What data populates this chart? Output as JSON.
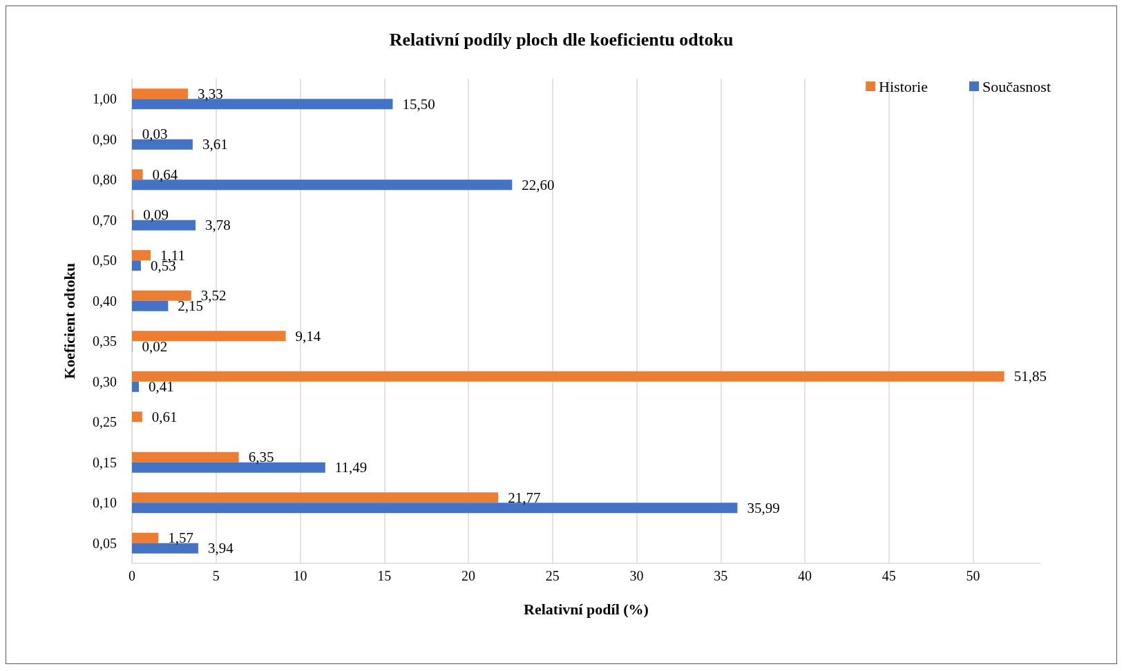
{
  "chart_data": {
    "type": "bar",
    "orientation": "horizontal",
    "title": "Relativní podíly ploch dle koeficientu odtoku",
    "xlabel": "Relativní podíl (%)",
    "ylabel": "Koeficient odtoku",
    "categories": [
      "1,00",
      "0,90",
      "0,80",
      "0,70",
      "0,50",
      "0,40",
      "0,35",
      "0,30",
      "0,25",
      "0,15",
      "0,10",
      "0,05"
    ],
    "series": [
      {
        "name": "Historie",
        "color": "#ed7d31",
        "values": [
          3.33,
          0.03,
          0.64,
          0.09,
          1.11,
          3.52,
          9.14,
          51.85,
          0.61,
          6.35,
          21.77,
          1.57
        ],
        "value_labels": [
          "3,33",
          "0,03",
          "0,64",
          "0,09",
          "1,11",
          "3,52",
          "9,14",
          "51,85",
          "0,61",
          "6,35",
          "21,77",
          "1,57"
        ]
      },
      {
        "name": "Současnost",
        "color": "#4472c4",
        "values": [
          15.5,
          3.61,
          22.6,
          3.78,
          0.53,
          2.15,
          0.02,
          0.41,
          null,
          11.49,
          35.99,
          3.94
        ],
        "value_labels": [
          "15,50",
          "3,61",
          "22,60",
          "3,78",
          "0,53",
          "2,15",
          "0,02",
          "0,41",
          null,
          "11,49",
          "35,99",
          "3,94"
        ]
      }
    ],
    "xlim": [
      0,
      54
    ],
    "xticks": [
      0,
      5,
      10,
      15,
      20,
      25,
      30,
      35,
      40,
      45,
      50
    ],
    "grid": "x",
    "legend": "top right"
  }
}
